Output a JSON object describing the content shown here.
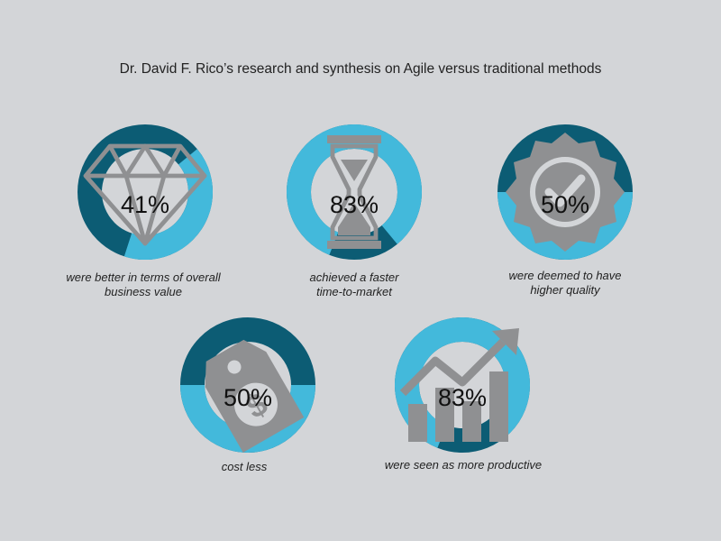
{
  "title": "Dr. David F. Rico’s research and synthesis on Agile versus traditional methods",
  "colors": {
    "dark": "#0c5c74",
    "light": "#43b9db",
    "inner": "#d3d5d8",
    "icon": "#8f9092"
  },
  "chart_data": {
    "type": "donut",
    "title": "Dr. David F. Rico’s research and synthesis on Agile versus traditional methods",
    "items": [
      {
        "value": 41,
        "label": "41%",
        "icon": "diamond-icon",
        "caption": [
          "were better in terms of overall",
          "business value"
        ]
      },
      {
        "value": 83,
        "label": "83%",
        "icon": "hourglass-icon",
        "caption": [
          "achieved a faster",
          "time-to-market"
        ]
      },
      {
        "value": 50,
        "label": "50%",
        "icon": "quality-badge-icon",
        "caption": [
          "were deemed to have",
          "higher quality"
        ]
      },
      {
        "value": 50,
        "label": "50%",
        "icon": "price-tag-icon",
        "caption": [
          "cost less"
        ]
      },
      {
        "value": 83,
        "label": "83%",
        "icon": "growth-chart-icon",
        "caption": [
          "were seen as more productive"
        ]
      }
    ]
  }
}
